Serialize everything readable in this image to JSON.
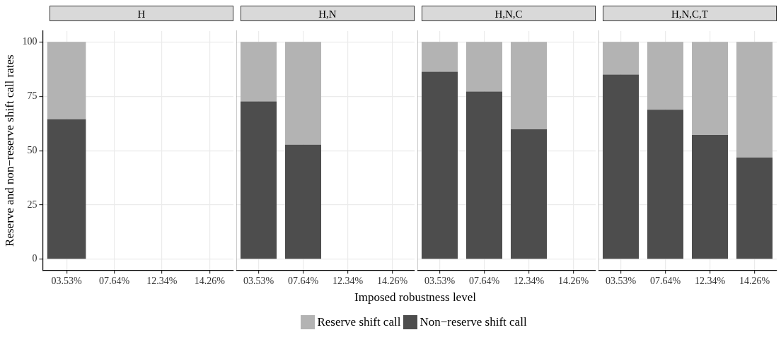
{
  "chart_data": [
    {
      "type": "bar",
      "title": "H",
      "ylabel": "Reserve and non−reserve shift call rates",
      "categories": [
        "03.53%",
        "07.64%",
        "12.34%",
        "14.26%"
      ],
      "stacked": true,
      "ylim": [
        -5,
        105
      ],
      "yticks": [
        0,
        25,
        50,
        75,
        100
      ],
      "grid": true,
      "legend": "bottom",
      "series": [
        {
          "name": "Non−reserve shift call",
          "color": "#4d4d4d",
          "values": [
            64.4,
            0,
            0,
            0
          ]
        },
        {
          "name": "Reserve shift call",
          "color": "#b3b3b3",
          "values": [
            35.6,
            0,
            0,
            0
          ]
        }
      ]
    },
    {
      "type": "bar",
      "title": "H,N",
      "xlabel": "Imposed robustness level",
      "categories": [
        "03.53%",
        "07.64%",
        "12.34%",
        "14.26%"
      ],
      "stacked": true,
      "ylim": [
        -5,
        105
      ],
      "yticks": [
        0,
        25,
        50,
        75,
        100
      ],
      "grid": true,
      "tick_labels": "x",
      "series": [
        {
          "color": "#4d4d4d",
          "values": [
            72.6,
            52.7,
            0,
            0
          ]
        },
        {
          "color": "#b3b3b3",
          "values": [
            27.4,
            47.3,
            0,
            0
          ]
        }
      ]
    },
    {
      "type": "bar",
      "title": "H,N,C",
      "categories": [
        "03.53%",
        "07.64%",
        "12.34%",
        "14.26%"
      ],
      "stacked": true,
      "ylim": [
        -5,
        105
      ],
      "yticks": [
        0,
        25,
        50,
        75,
        100
      ],
      "grid": true,
      "tick_labels": "x",
      "series": [
        {
          "color": "#4d4d4d",
          "values": [
            86.3,
            77.2,
            59.8,
            0
          ]
        },
        {
          "color": "#b3b3b3",
          "values": [
            13.7,
            22.8,
            40.2,
            0
          ]
        }
      ]
    },
    {
      "type": "bar",
      "title": "H,N,C,T",
      "categories": [
        "03.53%",
        "07.64%",
        "12.34%",
        "14.26%"
      ],
      "stacked": true,
      "ylim": [
        -5,
        105
      ],
      "yticks": [
        0,
        25,
        50,
        75,
        100
      ],
      "grid": true,
      "tick_labels": "x",
      "series": [
        {
          "color": "#4d4d4d",
          "values": [
            85.0,
            68.8,
            57.2,
            46.8
          ]
        },
        {
          "color": "#b3b3b3",
          "values": [
            15.0,
            31.2,
            42.8,
            53.2
          ]
        }
      ]
    }
  ]
}
